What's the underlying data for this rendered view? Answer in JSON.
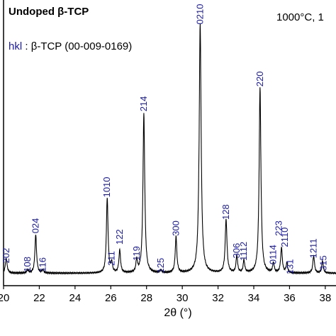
{
  "chart_data": {
    "type": "line",
    "title": "Undoped β-TCP",
    "annotation": "1000°C, 1",
    "legend_key": "hkl",
    "legend_text": " : β-TCP (00-009-0169)",
    "xlabel": "2θ (°)",
    "ylabel": "",
    "xlim": [
      20,
      38.6
    ],
    "xticks": [
      20,
      22,
      24,
      26,
      28,
      30,
      32,
      34,
      36,
      38
    ],
    "tick_labels": [
      "20",
      "22",
      "24",
      "26",
      "28",
      "30",
      "32",
      "34",
      "36",
      "38"
    ],
    "baseline": 0.05,
    "series": [
      {
        "peaks": [
          {
            "x": 20.15,
            "h": 0.06,
            "w": 0.06
          },
          {
            "x": 21.35,
            "h": 0.012,
            "w": 0.06
          },
          {
            "x": 21.8,
            "h": 0.155,
            "w": 0.055
          },
          {
            "x": 22.2,
            "h": 0.012,
            "w": 0.06
          },
          {
            "x": 25.8,
            "h": 0.3,
            "w": 0.055
          },
          {
            "x": 26.05,
            "h": 0.04,
            "w": 0.05
          },
          {
            "x": 26.5,
            "h": 0.09,
            "w": 0.055
          },
          {
            "x": 27.45,
            "h": 0.05,
            "w": 0.05
          },
          {
            "x": 27.85,
            "h": 0.64,
            "w": 0.06
          },
          {
            "x": 28.8,
            "h": 0.01,
            "w": 0.06
          },
          {
            "x": 29.65,
            "h": 0.145,
            "w": 0.055
          },
          {
            "x": 31.0,
            "h": 1.0,
            "w": 0.065
          },
          {
            "x": 32.45,
            "h": 0.215,
            "w": 0.06
          },
          {
            "x": 33.05,
            "h": 0.07,
            "w": 0.05
          },
          {
            "x": 33.45,
            "h": 0.05,
            "w": 0.05
          },
          {
            "x": 34.35,
            "h": 0.745,
            "w": 0.06
          },
          {
            "x": 35.1,
            "h": 0.04,
            "w": 0.05
          },
          {
            "x": 35.55,
            "h": 0.1,
            "w": 0.055
          },
          {
            "x": 35.85,
            "h": 0.04,
            "w": 0.05
          },
          {
            "x": 37.35,
            "h": 0.07,
            "w": 0.055
          },
          {
            "x": 37.85,
            "h": 0.05,
            "w": 0.05
          }
        ]
      }
    ],
    "peak_labels": [
      {
        "text": "202",
        "x": 20.15,
        "y": 0.09
      },
      {
        "text": "108",
        "x": 21.35,
        "y": 0.055
      },
      {
        "text": "024",
        "x": 21.8,
        "y": 0.21
      },
      {
        "text": "116",
        "x": 22.2,
        "y": 0.055
      },
      {
        "text": "1010",
        "x": 25.8,
        "y": 0.355
      },
      {
        "text": "211",
        "x": 26.05,
        "y": 0.08
      },
      {
        "text": "122",
        "x": 26.5,
        "y": 0.165
      },
      {
        "text": "119",
        "x": 27.45,
        "y": 0.1
      },
      {
        "text": "214",
        "x": 27.85,
        "y": 0.7
      },
      {
        "text": "125",
        "x": 28.8,
        "y": 0.05
      },
      {
        "text": "300",
        "x": 29.65,
        "y": 0.2
      },
      {
        "text": "0210",
        "x": 31.0,
        "y": 1.05
      },
      {
        "text": "128",
        "x": 32.45,
        "y": 0.265
      },
      {
        "text": "306",
        "x": 33.05,
        "y": 0.11
      },
      {
        "text": "1112",
        "x": 33.45,
        "y": 0.1
      },
      {
        "text": "220",
        "x": 34.35,
        "y": 0.8
      },
      {
        "text": "0114",
        "x": 35.1,
        "y": 0.085
      },
      {
        "text": "223",
        "x": 35.4,
        "y": 0.2
      },
      {
        "text": "2110",
        "x": 35.75,
        "y": 0.155
      },
      {
        "text": "131",
        "x": 36.05,
        "y": 0.045
      },
      {
        "text": "1211",
        "x": 37.35,
        "y": 0.11
      },
      {
        "text": "315",
        "x": 37.9,
        "y": 0.06
      }
    ]
  }
}
